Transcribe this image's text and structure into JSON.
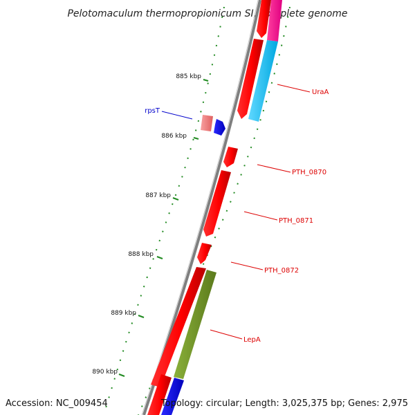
{
  "title": "Pelotomaculum thermopropionicum SI, complete genome",
  "footer": {
    "accession": "Accession: NC_009454",
    "topology": "Topology: circular; Length: 3,025,375 bp; Genes: 2,975"
  },
  "colors": {
    "backbone": "#808080",
    "cds": "#ff0000",
    "rna": "#0000ee",
    "pink": "#ff1493",
    "cyan": "#00bfff",
    "olive": "#6b8e23",
    "light_red": "#f08080",
    "tick": "#228b22",
    "label_red": "#dd0000",
    "label_blue": "#0000cc"
  },
  "ticks": [
    {
      "label": "885 kbp",
      "kbp": 885
    },
    {
      "label": "886 kbp",
      "kbp": 886
    },
    {
      "label": "887 kbp",
      "kbp": 887
    },
    {
      "label": "888 kbp",
      "kbp": 888
    },
    {
      "label": "889 kbp",
      "kbp": 889
    },
    {
      "label": "890 kbp",
      "kbp": 890
    }
  ],
  "gene_labels": [
    {
      "name": "UraA",
      "color": "label_red"
    },
    {
      "name": "rpsT",
      "color": "label_blue"
    },
    {
      "name": "PTH_0870",
      "color": "label_red"
    },
    {
      "name": "PTH_0871",
      "color": "label_red"
    },
    {
      "name": "PTH_0872",
      "color": "label_red"
    },
    {
      "name": "LepA",
      "color": "label_red"
    }
  ]
}
